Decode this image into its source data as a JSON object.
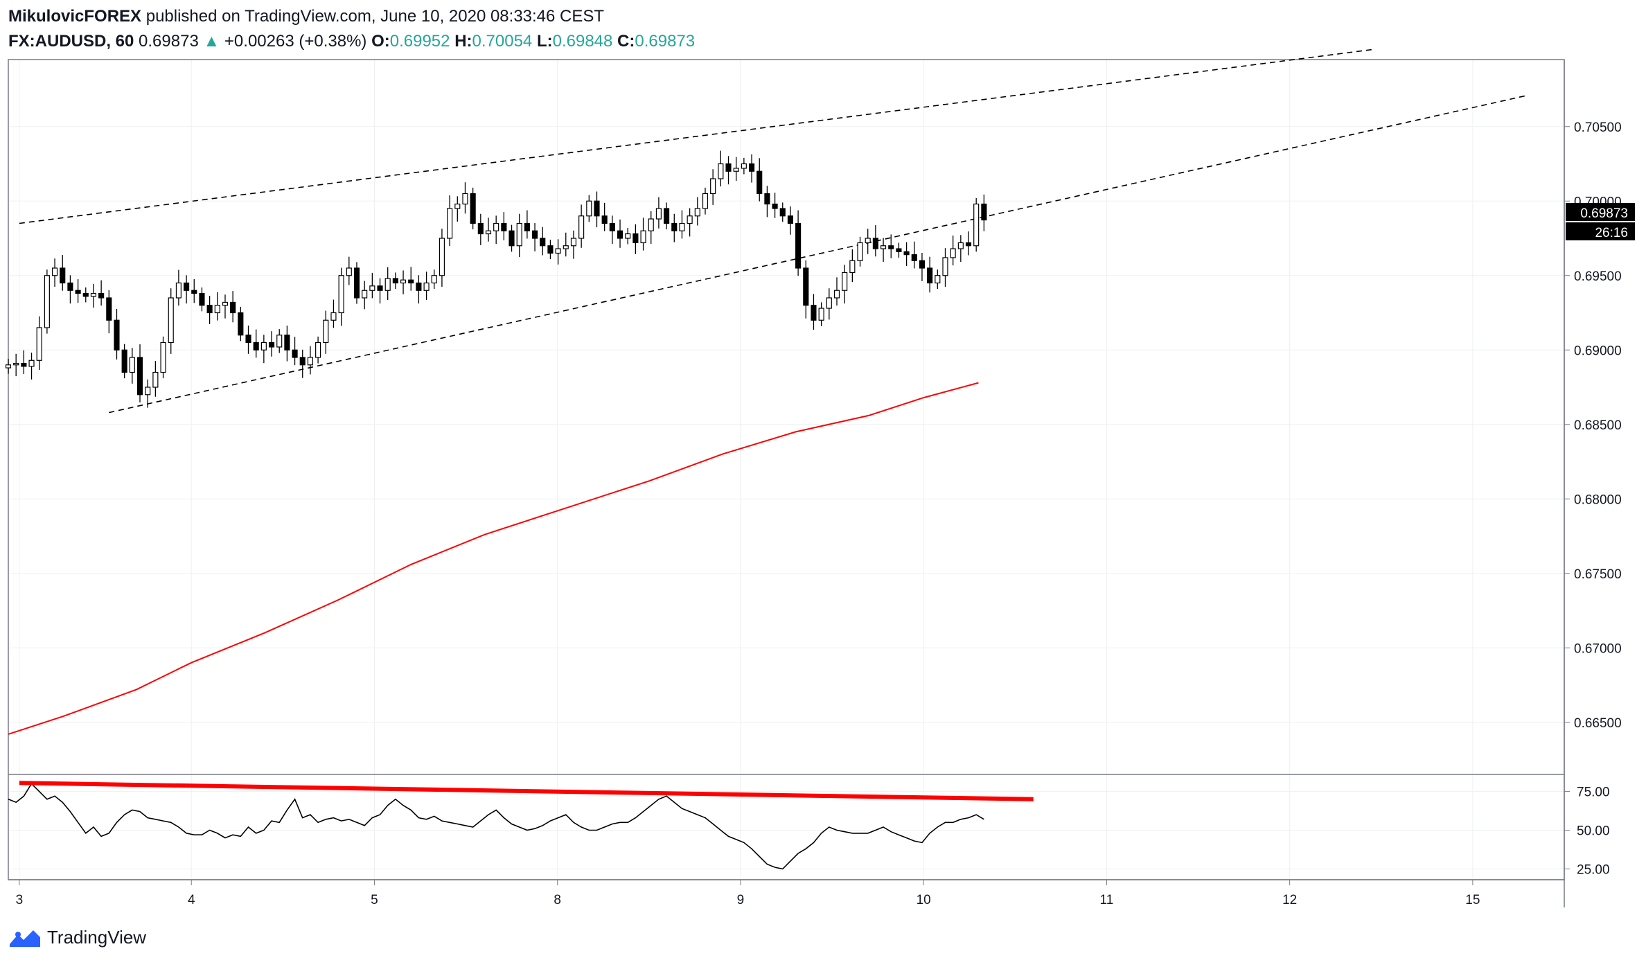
{
  "header": {
    "author": "MikulovicFOREX",
    "published_text": "published on TradingView.com, June 10, 2020 08:33:46 CEST",
    "symbol": "FX:AUDUSD, 60",
    "last": "0.69873",
    "change": "+0.00263 (+0.38%)",
    "open_label": "O:",
    "open": "0.69952",
    "high_label": "H:",
    "high": "0.70054",
    "low_label": "L:",
    "low": "0.69848",
    "close_label": "C:",
    "close": "0.69873",
    "up_arrow": "▲"
  },
  "footer": {
    "brand": "TradingView",
    "icon": "tradingview-logo-icon"
  },
  "colors": {
    "up": "#26a69a",
    "ma": "#ff0000",
    "candle_up": "#ffffff",
    "candle_down": "#000000",
    "grid": "#e0e3eb"
  },
  "chart_data": [
    {
      "type": "candlestick",
      "title": "FX:AUDUSD, 60",
      "ylim": [
        0.6615,
        0.7095
      ],
      "y_ticks": [
        "0.70500",
        "0.70000",
        "0.69500",
        "0.69000",
        "0.68500",
        "0.68000",
        "0.67500",
        "0.67000",
        "0.66500"
      ],
      "x_ticks": [
        {
          "label": "3",
          "x": 0.06
        },
        {
          "label": "4",
          "x": 1
        },
        {
          "label": "5",
          "x": 2
        },
        {
          "label": "8",
          "x": 3
        },
        {
          "label": "9",
          "x": 4
        },
        {
          "label": "10",
          "x": 5
        },
        {
          "label": "11",
          "x": 6
        },
        {
          "label": "12",
          "x": 7
        },
        {
          "label": "15",
          "x": 8
        }
      ],
      "x_range": [
        0,
        8.5
      ],
      "price_label": "0.69873",
      "countdown_label": "26:16",
      "closes": [
        0.689,
        0.6891,
        0.6889,
        0.6893,
        0.6915,
        0.695,
        0.6955,
        0.6945,
        0.694,
        0.6938,
        0.6936,
        0.6938,
        0.6935,
        0.692,
        0.69,
        0.6885,
        0.6895,
        0.687,
        0.6875,
        0.6885,
        0.6905,
        0.6935,
        0.6945,
        0.694,
        0.6938,
        0.693,
        0.6925,
        0.693,
        0.6932,
        0.6925,
        0.691,
        0.6905,
        0.69,
        0.6905,
        0.6902,
        0.691,
        0.69,
        0.6895,
        0.689,
        0.6895,
        0.6905,
        0.692,
        0.6925,
        0.695,
        0.6955,
        0.6935,
        0.694,
        0.6943,
        0.694,
        0.6948,
        0.6945,
        0.6947,
        0.6945,
        0.694,
        0.6945,
        0.695,
        0.6975,
        0.6995,
        0.6998,
        0.7005,
        0.6985,
        0.6978,
        0.698,
        0.6985,
        0.698,
        0.697,
        0.6985,
        0.698,
        0.6975,
        0.697,
        0.6965,
        0.6968,
        0.697,
        0.6975,
        0.699,
        0.7,
        0.699,
        0.6985,
        0.698,
        0.6975,
        0.6978,
        0.6972,
        0.698,
        0.6988,
        0.6995,
        0.6985,
        0.698,
        0.6985,
        0.699,
        0.6995,
        0.7005,
        0.7015,
        0.7025,
        0.702,
        0.7022,
        0.7025,
        0.702,
        0.7005,
        0.6998,
        0.6995,
        0.699,
        0.6985,
        0.6955,
        0.693,
        0.692,
        0.6928,
        0.6935,
        0.694,
        0.6952,
        0.696,
        0.6972,
        0.6975,
        0.6968,
        0.697,
        0.6968,
        0.6966,
        0.6964,
        0.696,
        0.6955,
        0.6945,
        0.695,
        0.6962,
        0.6968,
        0.6972,
        0.697,
        0.6998,
        0.69873
      ],
      "overlays": [
        {
          "name": "upper-channel-line",
          "style": "dashed",
          "points": [
            [
              0.06,
              0.6985
            ],
            [
              7.47,
              0.7102
            ]
          ]
        },
        {
          "name": "lower-channel-line",
          "style": "dashed",
          "points": [
            [
              0.55,
              0.6858
            ],
            [
              8.3,
              0.7071
            ]
          ]
        },
        {
          "name": "moving-average",
          "style": "solid",
          "color": "#ff0000",
          "points": [
            [
              0,
              0.6642
            ],
            [
              0.3,
              0.6654
            ],
            [
              0.7,
              0.6672
            ],
            [
              1.0,
              0.669
            ],
            [
              1.4,
              0.671
            ],
            [
              1.8,
              0.6732
            ],
            [
              2.2,
              0.6756
            ],
            [
              2.6,
              0.6776
            ],
            [
              3.0,
              0.6792
            ],
            [
              3.5,
              0.6812
            ],
            [
              3.9,
              0.683
            ],
            [
              4.3,
              0.6845
            ],
            [
              4.7,
              0.6856
            ],
            [
              5.0,
              0.6868
            ],
            [
              5.3,
              0.6878
            ]
          ]
        }
      ]
    },
    {
      "type": "line",
      "name": "oscillator",
      "ylim": [
        18,
        86
      ],
      "y_ticks": [
        "75.00",
        "50.00",
        "25.00"
      ],
      "values": [
        70,
        68,
        72,
        80,
        75,
        70,
        72,
        68,
        62,
        55,
        48,
        52,
        46,
        48,
        55,
        60,
        63,
        62,
        58,
        57,
        56,
        55,
        52,
        48,
        47,
        47,
        50,
        48,
        45,
        47,
        46,
        52,
        48,
        50,
        56,
        55,
        63,
        70,
        58,
        60,
        55,
        57,
        58,
        56,
        57,
        55,
        53,
        58,
        60,
        66,
        70,
        66,
        63,
        58,
        57,
        59,
        56,
        55,
        54,
        53,
        52,
        56,
        60,
        63,
        58,
        54,
        52,
        50,
        51,
        53,
        56,
        58,
        60,
        55,
        52,
        50,
        50,
        52,
        54,
        55,
        55,
        58,
        62,
        66,
        70,
        72,
        68,
        64,
        62,
        60,
        58,
        54,
        50,
        46,
        44,
        42,
        38,
        33,
        28,
        26,
        25,
        30,
        35,
        38,
        42,
        48,
        52,
        50,
        49,
        48,
        48,
        48,
        50,
        52,
        49,
        47,
        45,
        43,
        42,
        48,
        52,
        55,
        55,
        57,
        58,
        60,
        57
      ],
      "overlays": [
        {
          "name": "oscillator-trendline",
          "style": "solid",
          "color": "#ff0000",
          "points": [
            [
              0.06,
              80.5
            ],
            [
              5.6,
              70
            ]
          ]
        }
      ]
    }
  ]
}
